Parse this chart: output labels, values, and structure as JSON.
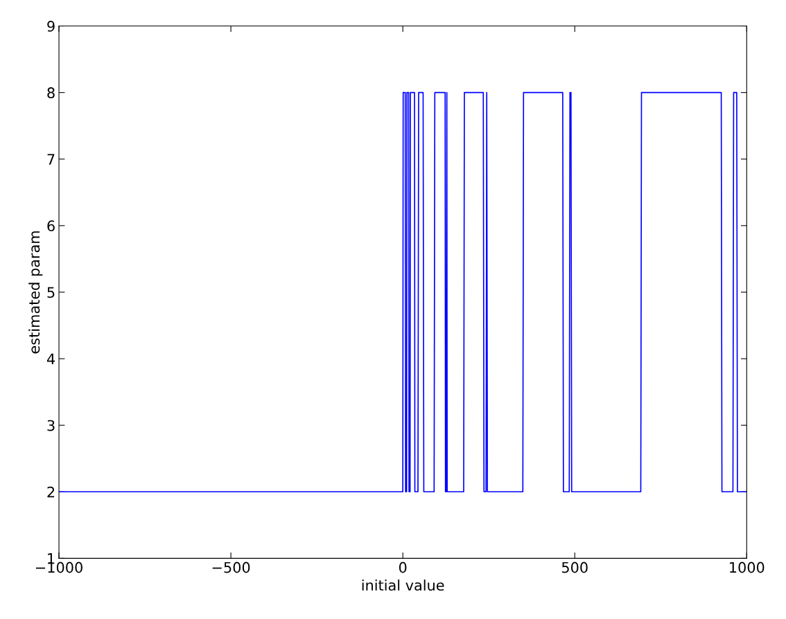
{
  "chart_data": {
    "type": "line",
    "xlabel": "initial value",
    "ylabel": "estimated param",
    "x": [
      -1000,
      0,
      1,
      7,
      8,
      11,
      12,
      17,
      18,
      21,
      22,
      34,
      35,
      44,
      46,
      59,
      61,
      91,
      93,
      123,
      124,
      126,
      128,
      129,
      177,
      179,
      234,
      236,
      242,
      244,
      246,
      349,
      351,
      465,
      467,
      484,
      486,
      489,
      491,
      692,
      694,
      926,
      928,
      960,
      962,
      971,
      973,
      1000
    ],
    "series": [
      {
        "color": "#0000ff",
        "values": [
          2,
          2,
          8,
          8,
          2,
          2,
          8,
          8,
          2,
          2,
          8,
          8,
          2,
          2,
          8,
          8,
          2,
          2,
          8,
          8,
          2,
          2,
          8,
          2,
          2,
          8,
          8,
          2,
          2,
          8,
          2,
          2,
          8,
          8,
          2,
          2,
          8,
          8,
          2,
          2,
          8,
          8,
          2,
          2,
          8,
          8,
          2,
          2
        ]
      }
    ],
    "xlim": [
      -1000,
      1000
    ],
    "xticks": [
      {
        "value": -1000,
        "label": "−1000"
      },
      {
        "value": -500,
        "label": "−500"
      },
      0,
      500,
      1000
    ],
    "ylim": [
      1,
      9
    ],
    "yticks": [
      1,
      2,
      3,
      4,
      5,
      6,
      7,
      8,
      9
    ],
    "grid": false,
    "legend": false,
    "marker": "none",
    "line_style": "solid"
  }
}
